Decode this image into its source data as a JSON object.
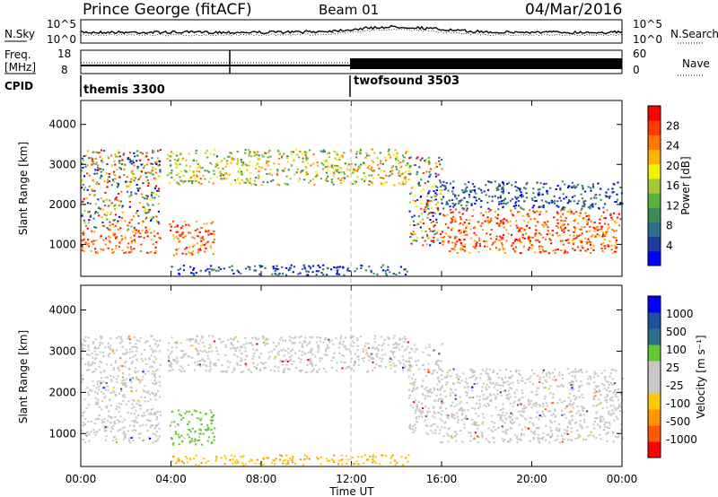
{
  "header": {
    "station": "Prince George (fitACF)",
    "beam": "Beam 01",
    "date": "04/Mar/2016"
  },
  "panels": {
    "nsky_label": "N.Sky",
    "nsearch_label": "N.Search",
    "freq_label_1": "Freq.",
    "freq_label_2": "[MHz]",
    "nave_label": "Nave",
    "cpid_label": "CPID",
    "noise_ticks": [
      "10^5",
      "10^0"
    ],
    "freq_ticks": [
      "18",
      "8"
    ],
    "nave_ticks": [
      "60",
      "0"
    ],
    "cpid_1": "themis 3300",
    "cpid_2": "twofsound 3503"
  },
  "chart_data": [
    {
      "type": "heatmap",
      "name": "power",
      "ylabel": "Slant Range [km]",
      "ylim": [
        200,
        4600
      ],
      "yticks": [
        "1000",
        "2000",
        "3000",
        "4000"
      ],
      "colorbar_label": "Power [dB]",
      "colorbar_ticks": [
        "28",
        "24",
        "20",
        "16",
        "12",
        "8",
        "4"
      ],
      "colors": [
        "#0000ff",
        "#1e3c9c",
        "#2c6e8c",
        "#3a8a5a",
        "#58b33b",
        "#a8c83c",
        "#f2f200",
        "#ffb400",
        "#ff7800",
        "#ff3c00",
        "#ff0000"
      ],
      "regions": [
        {
          "t": [
            0.0,
            3.5
          ],
          "r": [
            800,
            1400
          ],
          "level": "high"
        },
        {
          "t": [
            0.0,
            3.5
          ],
          "r": [
            1400,
            3400
          ],
          "level": "mixed"
        },
        {
          "t": [
            3.9,
            5.9
          ],
          "r": [
            750,
            1600
          ],
          "level": "high"
        },
        {
          "t": [
            3.8,
            14.6
          ],
          "r": [
            2500,
            3400
          ],
          "level": "mid"
        },
        {
          "t": [
            14.5,
            16.0
          ],
          "r": [
            1000,
            3200
          ],
          "level": "mixed"
        },
        {
          "t": [
            15.9,
            24.0
          ],
          "r": [
            800,
            1900
          ],
          "level": "high"
        },
        {
          "t": [
            15.9,
            24.0
          ],
          "r": [
            1900,
            2600
          ],
          "level": "low"
        },
        {
          "t": [
            4.0,
            14.5
          ],
          "r": [
            250,
            500
          ],
          "level": "low"
        }
      ]
    },
    {
      "type": "heatmap",
      "name": "velocity",
      "ylabel": "Slant Range [km]",
      "xlabel": "Time UT",
      "ylim": [
        200,
        4600
      ],
      "yticks": [
        "1000",
        "2000",
        "3000",
        "4000"
      ],
      "xticks": [
        "00:00",
        "04:00",
        "08:00",
        "12:00",
        "16:00",
        "20:00",
        "00:00"
      ],
      "xlim": [
        0,
        24
      ],
      "colorbar_label": "Velocity [m s⁻¹]",
      "colorbar_ticks": [
        "1000",
        "500",
        "100",
        "25",
        "-25",
        "-100",
        "-500",
        "-1000"
      ],
      "colors": [
        "#ff0000",
        "#ff5a00",
        "#ff9600",
        "#ffc800",
        "#c8c8c8",
        "#c8c8c8",
        "#64c832",
        "#2c6e8c",
        "#1e50a0",
        "#0000ff"
      ],
      "regions": [
        {
          "t": [
            0.0,
            3.5
          ],
          "r": [
            800,
            3400
          ],
          "level": "grey"
        },
        {
          "t": [
            3.9,
            5.9
          ],
          "r": [
            750,
            1600
          ],
          "level": "green"
        },
        {
          "t": [
            3.8,
            14.6
          ],
          "r": [
            2500,
            3400
          ],
          "level": "grey"
        },
        {
          "t": [
            14.5,
            16.0
          ],
          "r": [
            1000,
            3200
          ],
          "level": "grey"
        },
        {
          "t": [
            15.9,
            24.0
          ],
          "r": [
            800,
            2600
          ],
          "level": "grey"
        },
        {
          "t": [
            4.0,
            14.5
          ],
          "r": [
            250,
            500
          ],
          "level": "yellow"
        }
      ]
    }
  ]
}
